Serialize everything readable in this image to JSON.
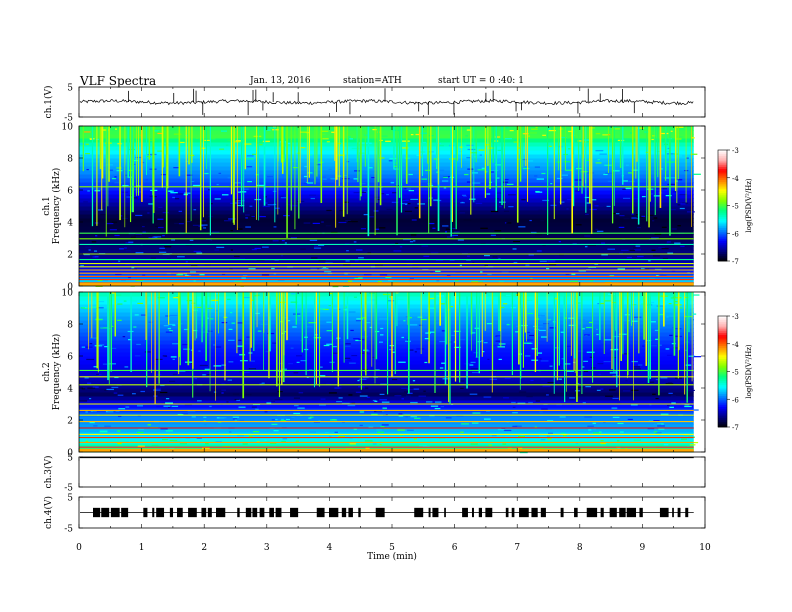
{
  "header": {
    "title": "VLF  Spectra",
    "date": "Jan. 13, 2016",
    "station": "station=ATH",
    "start": "start  UT  =   0 :40: 1"
  },
  "chart_data": [
    {
      "type": "line",
      "panel": "ch1-waveform",
      "ylabel": "ch.1(V)",
      "ylim": [
        -5,
        5
      ],
      "yticks": [
        "5",
        "-5"
      ],
      "baseline_value": 0,
      "xlim": [
        0,
        10
      ],
      "data_end": 9.82
    },
    {
      "type": "heatmap",
      "panel": "ch1-spectrogram",
      "ylabel_top": "ch.1",
      "ylabel": "Frequency  (kHz)",
      "ylim": [
        0,
        10
      ],
      "yticks": [
        "0",
        "2",
        "4",
        "6",
        "8",
        "10"
      ],
      "xlim": [
        0,
        10
      ],
      "data_end": 9.82,
      "colorbar": {
        "label": "log(PSD(V²/Hz)",
        "range": [
          -7,
          -3
        ],
        "ticks": [
          "-3",
          "-4",
          "-5",
          "-6",
          "-7"
        ]
      },
      "profile_log_psd": [
        {
          "f": 0.0,
          "v": -5.2
        },
        {
          "f": 0.3,
          "v": -5.6
        },
        {
          "f": 0.7,
          "v": -6.1
        },
        {
          "f": 1.2,
          "v": -6.4
        },
        {
          "f": 1.8,
          "v": -6.6
        },
        {
          "f": 2.6,
          "v": -6.7
        },
        {
          "f": 3.4,
          "v": -6.8
        },
        {
          "f": 4.2,
          "v": -6.85
        },
        {
          "f": 5.0,
          "v": -6.6
        },
        {
          "f": 6.0,
          "v": -6.2
        },
        {
          "f": 7.0,
          "v": -5.9
        },
        {
          "f": 8.0,
          "v": -5.7
        },
        {
          "f": 8.8,
          "v": -5.4
        },
        {
          "f": 9.4,
          "v": -5.0
        },
        {
          "f": 10.0,
          "v": -5.1
        }
      ],
      "tonal_lines_khz": [
        0.2,
        0.4,
        0.6,
        0.8,
        1.0,
        1.2,
        1.4,
        1.65,
        2.0,
        2.6,
        2.95,
        3.3,
        6.2
      ],
      "sferic_count": 160
    },
    {
      "type": "heatmap",
      "panel": "ch2-spectrogram",
      "ylabel_top": "ch.2",
      "ylabel": "Frequency  (kHz)",
      "ylim": [
        0,
        10
      ],
      "yticks": [
        "0",
        "2",
        "4",
        "6",
        "8",
        "10"
      ],
      "xlim": [
        0,
        10
      ],
      "data_end": 9.82,
      "colorbar": {
        "label": "log(PSD(V²/Hz)",
        "range": [
          -7,
          -3
        ],
        "ticks": [
          "-3",
          "-4",
          "-5",
          "-6",
          "-7"
        ]
      },
      "profile_log_psd": [
        {
          "f": 0.0,
          "v": -5.0
        },
        {
          "f": 0.4,
          "v": -5.3
        },
        {
          "f": 0.9,
          "v": -5.6
        },
        {
          "f": 1.5,
          "v": -5.8
        },
        {
          "f": 2.2,
          "v": -5.9
        },
        {
          "f": 3.0,
          "v": -6.3
        },
        {
          "f": 3.6,
          "v": -6.75
        },
        {
          "f": 4.4,
          "v": -6.5
        },
        {
          "f": 5.5,
          "v": -6.3
        },
        {
          "f": 6.5,
          "v": -6.2
        },
        {
          "f": 7.5,
          "v": -6.0
        },
        {
          "f": 8.5,
          "v": -5.8
        },
        {
          "f": 9.3,
          "v": -5.6
        },
        {
          "f": 10.0,
          "v": -5.3
        }
      ],
      "tonal_lines_khz": [
        0.3,
        0.6,
        0.9,
        1.1,
        1.5,
        1.9,
        2.3,
        2.6,
        3.0,
        4.2,
        4.7,
        5.1
      ],
      "sferic_count": 150
    },
    {
      "type": "line",
      "panel": "ch3-waveform",
      "ylabel": "ch.3(V)",
      "ylim": [
        -5,
        5
      ],
      "yticks": [
        "5",
        "-5"
      ],
      "baseline_value": 4.8,
      "xlim": [
        0,
        10
      ],
      "data_end": 9.82
    },
    {
      "type": "line",
      "panel": "ch4-waveform",
      "ylabel": "ch.4(V)",
      "ylim": [
        -5,
        5
      ],
      "yticks": [
        "5",
        "-5"
      ],
      "baseline_value": 0,
      "xlim": [
        0,
        10
      ],
      "data_end": 9.82,
      "xlabel": "Time  (min)",
      "xticks": [
        "0",
        "1",
        "2",
        "3",
        "4",
        "5",
        "6",
        "7",
        "8",
        "9",
        "10"
      ]
    }
  ],
  "colors": {
    "colormap": [
      "#000000",
      "#000080",
      "#0000ff",
      "#0080ff",
      "#00ffff",
      "#00ff80",
      "#80ff00",
      "#ffff00",
      "#ff8000",
      "#ff0000",
      "#ffb0b0",
      "#ffffff"
    ],
    "axis": "#000000",
    "trace": "#000000"
  }
}
